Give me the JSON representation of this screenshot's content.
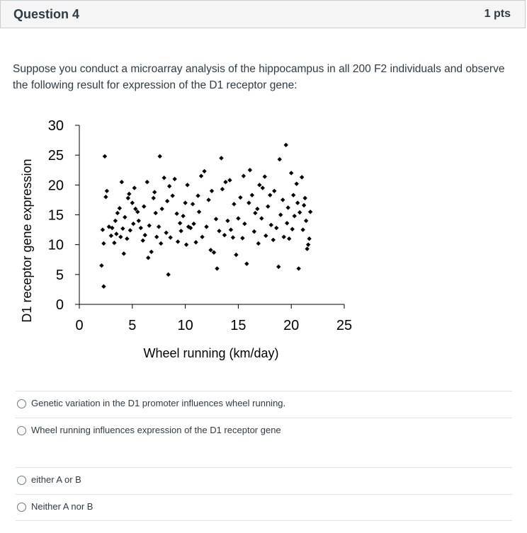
{
  "question": {
    "title": "Question 4",
    "points": "1 pts",
    "text": "Suppose you conduct a microarray analysis of the hippocampus in all 200 F2 individuals and observe the following result for expression of the D1 receptor gene:"
  },
  "answers": [
    "Genetic variation in the D1 promoter influences wheel running.",
    "Wheel running influences expression of the D1 receptor gene",
    "either A or B",
    "Neither A nor B"
  ],
  "chart_data": {
    "type": "scatter",
    "title": "",
    "xlabel": "Wheel running (km/day)",
    "ylabel": "D1 receptor gene expression",
    "xlim": [
      0,
      25
    ],
    "ylim": [
      0,
      30
    ],
    "xticks": [
      "0",
      "5",
      "10",
      "15",
      "20",
      "25"
    ],
    "yticks": [
      "0",
      "5",
      "10",
      "15",
      "20",
      "25",
      "30"
    ],
    "grid": false,
    "marker_color": "#000000",
    "points": [
      [
        2.1,
        6.5
      ],
      [
        2.3,
        3.0
      ],
      [
        2.2,
        12.5
      ],
      [
        2.4,
        24.8
      ],
      [
        2.5,
        18.0
      ],
      [
        2.6,
        19.0
      ],
      [
        2.3,
        10.2
      ],
      [
        2.8,
        13.0
      ],
      [
        3.0,
        11.5
      ],
      [
        3.1,
        12.8
      ],
      [
        3.3,
        10.3
      ],
      [
        3.4,
        14.0
      ],
      [
        3.5,
        11.8
      ],
      [
        3.6,
        15.3
      ],
      [
        3.8,
        16.1
      ],
      [
        3.9,
        11.3
      ],
      [
        4.0,
        20.5
      ],
      [
        4.1,
        12.7
      ],
      [
        4.2,
        8.5
      ],
      [
        4.3,
        14.6
      ],
      [
        4.5,
        11.0
      ],
      [
        4.6,
        17.8
      ],
      [
        4.7,
        18.5
      ],
      [
        4.8,
        12.4
      ],
      [
        5.0,
        17.0
      ],
      [
        5.1,
        13.5
      ],
      [
        5.2,
        19.5
      ],
      [
        5.3,
        16.0
      ],
      [
        5.5,
        15.5
      ],
      [
        5.6,
        14.0
      ],
      [
        5.8,
        12.8
      ],
      [
        6.0,
        10.7
      ],
      [
        6.1,
        16.4
      ],
      [
        6.2,
        11.6
      ],
      [
        6.4,
        20.5
      ],
      [
        6.5,
        7.8
      ],
      [
        6.6,
        13.2
      ],
      [
        6.8,
        8.8
      ],
      [
        7.0,
        17.8
      ],
      [
        7.1,
        18.8
      ],
      [
        7.2,
        15.3
      ],
      [
        7.3,
        11.3
      ],
      [
        7.5,
        13.0
      ],
      [
        7.6,
        24.8
      ],
      [
        7.7,
        10.2
      ],
      [
        7.8,
        16.0
      ],
      [
        8.0,
        21.2
      ],
      [
        8.2,
        12.0
      ],
      [
        8.3,
        17.3
      ],
      [
        8.4,
        5.0
      ],
      [
        8.5,
        19.8
      ],
      [
        8.6,
        11.2
      ],
      [
        8.8,
        18.2
      ],
      [
        9.0,
        21.0
      ],
      [
        9.2,
        15.2
      ],
      [
        9.3,
        10.5
      ],
      [
        9.5,
        13.6
      ],
      [
        9.6,
        12.3
      ],
      [
        9.8,
        14.8
      ],
      [
        10.0,
        17.0
      ],
      [
        10.1,
        10.0
      ],
      [
        10.2,
        20.0
      ],
      [
        10.3,
        13.0
      ],
      [
        10.5,
        12.8
      ],
      [
        10.7,
        16.8
      ],
      [
        10.8,
        13.5
      ],
      [
        11.0,
        10.4
      ],
      [
        11.2,
        18.2
      ],
      [
        11.3,
        15.5
      ],
      [
        11.5,
        21.5
      ],
      [
        11.6,
        11.3
      ],
      [
        11.8,
        22.3
      ],
      [
        12.0,
        13.0
      ],
      [
        12.2,
        17.5
      ],
      [
        12.4,
        9.1
      ],
      [
        12.5,
        19.0
      ],
      [
        12.7,
        8.7
      ],
      [
        12.9,
        14.3
      ],
      [
        13.0,
        6.0
      ],
      [
        13.2,
        12.3
      ],
      [
        13.4,
        24.5
      ],
      [
        13.5,
        19.3
      ],
      [
        13.7,
        11.6
      ],
      [
        13.8,
        20.5
      ],
      [
        14.0,
        14.0
      ],
      [
        14.2,
        20.8
      ],
      [
        14.3,
        12.5
      ],
      [
        14.5,
        11.2
      ],
      [
        14.6,
        16.8
      ],
      [
        14.8,
        8.3
      ],
      [
        15.0,
        14.4
      ],
      [
        15.2,
        17.9
      ],
      [
        15.4,
        11.1
      ],
      [
        15.5,
        21.5
      ],
      [
        15.6,
        13.5
      ],
      [
        15.8,
        6.8
      ],
      [
        16.0,
        17.0
      ],
      [
        16.1,
        22.5
      ],
      [
        16.3,
        18.3
      ],
      [
        16.5,
        12.2
      ],
      [
        16.6,
        15.3
      ],
      [
        16.8,
        16.0
      ],
      [
        16.9,
        10.2
      ],
      [
        17.0,
        20.0
      ],
      [
        17.2,
        14.4
      ],
      [
        17.3,
        19.5
      ],
      [
        17.5,
        21.4
      ],
      [
        17.6,
        11.5
      ],
      [
        17.8,
        16.4
      ],
      [
        18.0,
        18.3
      ],
      [
        18.1,
        13.3
      ],
      [
        18.3,
        10.8
      ],
      [
        18.4,
        19.0
      ],
      [
        18.6,
        12.8
      ],
      [
        18.8,
        6.3
      ],
      [
        18.9,
        24.3
      ],
      [
        19.0,
        15.0
      ],
      [
        19.2,
        17.5
      ],
      [
        19.3,
        11.3
      ],
      [
        19.5,
        26.7
      ],
      [
        19.6,
        13.6
      ],
      [
        19.7,
        16.2
      ],
      [
        19.8,
        11.0
      ],
      [
        20.0,
        22.0
      ],
      [
        20.1,
        12.6
      ],
      [
        20.2,
        18.3
      ],
      [
        20.3,
        14.8
      ],
      [
        20.5,
        20.2
      ],
      [
        20.6,
        17.0
      ],
      [
        20.7,
        6.0
      ],
      [
        20.8,
        15.4
      ],
      [
        21.0,
        21.3
      ],
      [
        21.1,
        12.5
      ],
      [
        21.3,
        17.8
      ],
      [
        21.4,
        14.0
      ],
      [
        21.5,
        9.3
      ],
      [
        21.6,
        10.0
      ],
      [
        21.7,
        11.0
      ],
      [
        21.8,
        15.5
      ],
      [
        21.2,
        16.6
      ]
    ]
  }
}
